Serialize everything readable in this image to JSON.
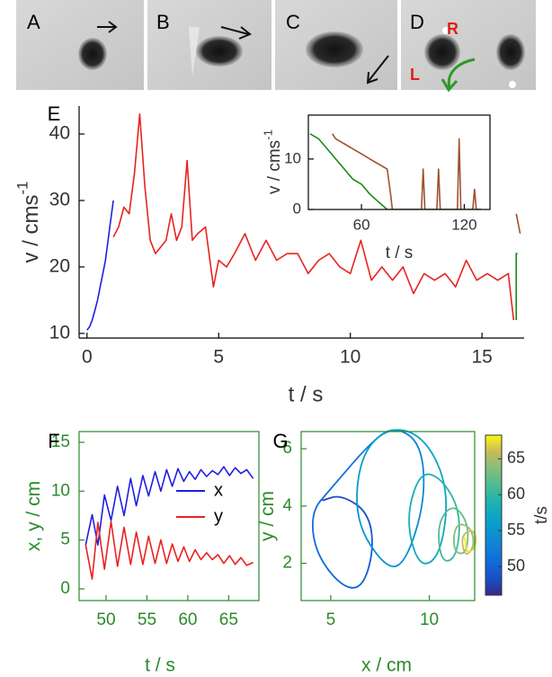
{
  "photos": [
    {
      "label": "A"
    },
    {
      "label": "B"
    },
    {
      "label": "C"
    },
    {
      "label": "D",
      "marks": [
        "R",
        "L"
      ]
    }
  ],
  "chart_data": [
    {
      "type": "line",
      "panel": "E",
      "xlabel": "t / s",
      "ylabel": "v / cms",
      "ylabel_sup": "-1",
      "xlim": [
        -0.3,
        16.6
      ],
      "ylim": [
        9.3,
        44.2
      ],
      "xticks": [
        0,
        5,
        10,
        15
      ],
      "yticks": [
        10,
        20,
        30,
        40
      ],
      "series": [
        {
          "color": "#1f1fe0",
          "x": [
            0,
            0.1,
            0.2,
            0.3,
            0.4,
            0.5,
            0.6,
            0.7,
            0.8,
            0.9,
            1.0
          ],
          "values": [
            10.5,
            11,
            12,
            13.5,
            15,
            17,
            19,
            21,
            24,
            27,
            30
          ]
        },
        {
          "color": "#e8231f",
          "x": [
            1.0,
            1.2,
            1.4,
            1.6,
            1.8,
            2.0,
            2.2,
            2.4,
            2.6,
            2.8,
            3.0,
            3.2,
            3.4,
            3.6,
            3.8,
            4.0,
            4.2,
            4.5,
            4.8,
            5.0,
            5.3,
            5.6,
            6.0,
            6.4,
            6.8,
            7.2,
            7.6,
            8.0,
            8.4,
            8.8,
            9.2,
            9.6,
            10.0,
            10.4,
            10.8,
            11.2,
            11.6,
            12.0,
            12.4,
            12.8,
            13.2,
            13.6,
            14.0,
            14.4,
            14.8,
            15.2,
            15.6,
            16.0,
            16.2
          ],
          "values": [
            24.5,
            26,
            29,
            28,
            34,
            43,
            32,
            24,
            22,
            23,
            24,
            28,
            24,
            26,
            36,
            24,
            25,
            26,
            17,
            21,
            20,
            22,
            25,
            21,
            24,
            21,
            22,
            22,
            19,
            21,
            22,
            20,
            19,
            24,
            18,
            20,
            18,
            20,
            16,
            19,
            18,
            19,
            17,
            21,
            18,
            19,
            18,
            19,
            12
          ]
        },
        {
          "color": "#1a8a1a",
          "x": [
            16.3,
            16.3,
            16.35
          ],
          "values": [
            12,
            22,
            22
          ]
        },
        {
          "color": "#a0522d",
          "x": [
            16.3,
            16.35,
            16.45
          ],
          "values": [
            28,
            27,
            25
          ]
        }
      ]
    },
    {
      "type": "line",
      "xlabel": "t / s",
      "ylabel": "v / cms",
      "ylabel_sup": "-1",
      "xlim": [
        29,
        135
      ],
      "ylim": [
        0,
        18.7
      ],
      "xticks": [
        60,
        120
      ],
      "yticks": [
        0,
        10
      ],
      "series": [
        {
          "color": "#1a8a1a",
          "x": [
            30,
            35,
            40,
            45,
            50,
            55,
            60,
            65,
            70,
            75,
            80,
            100,
            130
          ],
          "values": [
            15,
            14,
            12,
            10,
            8,
            6,
            5,
            3,
            1.5,
            0,
            0,
            0,
            0
          ]
        },
        {
          "color": "#a0522d",
          "x": [
            43,
            45,
            50,
            55,
            60,
            65,
            70,
            75,
            77,
            78,
            90,
            95,
            96,
            97,
            100,
            104,
            105,
            106,
            110,
            116,
            117,
            118,
            125,
            126,
            127,
            130
          ],
          "values": [
            15,
            14,
            13,
            12,
            11,
            10,
            9,
            8,
            3,
            0,
            0,
            0,
            8,
            0,
            0,
            0,
            8,
            0,
            0,
            0,
            14,
            0,
            0,
            4,
            0,
            0
          ]
        }
      ]
    },
    {
      "type": "line",
      "panel": "F",
      "xlabel": "t / s",
      "ylabel": "x, y / cm",
      "axis_color": "#2a8a2a",
      "xlim": [
        46.7,
        68.7
      ],
      "ylim": [
        -1.2,
        16.1
      ],
      "xticks": [
        50,
        55,
        60,
        65
      ],
      "yticks": [
        0,
        5,
        10,
        15
      ],
      "series": [
        {
          "name": "x",
          "color": "#1f1fe0",
          "x": [
            47.5,
            48.3,
            49,
            49.8,
            50.6,
            51.4,
            52.2,
            53,
            53.7,
            54.5,
            55.2,
            56,
            56.7,
            57.4,
            58.1,
            58.8,
            59.5,
            60.2,
            60.9,
            61.6,
            62.3,
            63,
            63.7,
            64.4,
            65.1,
            65.8,
            66.5,
            67.2,
            68
          ],
          "values": [
            4.5,
            7.6,
            4.5,
            9.6,
            7,
            10.5,
            7.5,
            11.3,
            8.5,
            11.6,
            9.5,
            12,
            10,
            12.2,
            10.5,
            12.3,
            11,
            12,
            11.2,
            12.2,
            11.5,
            12.1,
            11.7,
            12.5,
            11.6,
            12.4,
            11.8,
            12.2,
            11.3
          ]
        },
        {
          "name": "y",
          "color": "#e8231f",
          "x": [
            47.5,
            48.3,
            49,
            49.8,
            50.6,
            51.4,
            52.2,
            53,
            53.7,
            54.5,
            55.2,
            56,
            56.7,
            57.4,
            58.1,
            58.8,
            59.5,
            60.2,
            60.9,
            61.6,
            62.3,
            63,
            63.7,
            64.4,
            65.1,
            65.8,
            66.5,
            67.2,
            68
          ],
          "values": [
            4.5,
            1,
            6.8,
            2,
            6.9,
            2.3,
            6.3,
            2.5,
            5.8,
            2.5,
            5.4,
            2.6,
            5,
            2.6,
            4.6,
            2.8,
            4.3,
            2.8,
            4,
            3,
            3.7,
            3,
            3.5,
            2.6,
            3.4,
            2.5,
            3.2,
            2.4,
            2.7
          ]
        }
      ]
    },
    {
      "type": "trajectory",
      "panel": "G",
      "xlabel": "x / cm",
      "ylabel": "y / cm",
      "axis_color": "#2a8a2a",
      "xlim": [
        3.5,
        12.3
      ],
      "ylim": [
        0.7,
        6.6
      ],
      "xticks": [
        5,
        10
      ],
      "yticks": [
        2,
        4,
        6
      ],
      "x": [
        4.6,
        5.5,
        6.9,
        7.2,
        6.6,
        5.5,
        4.2,
        4.0,
        5.0,
        7.0,
        8.2,
        9.6,
        9.8,
        8.8,
        7.8,
        6.2,
        6.5,
        8.0,
        9.8,
        11,
        10.6,
        9.5,
        8.8,
        9.5,
        10.6,
        11.6,
        11.4,
        10.6,
        10.4,
        11.2,
        12.0,
        11.9,
        11.2,
        11.3,
        12.1,
        12.3,
        11.8,
        11.6,
        12.3,
        12.4,
        11.9,
        11.8
      ],
      "y": [
        4.2,
        4.4,
        3.8,
        2.5,
        1.1,
        1.2,
        2.4,
        3.8,
        4.6,
        6.2,
        6.8,
        6.2,
        4.2,
        2.0,
        1.8,
        3.5,
        5.8,
        6.8,
        6.4,
        4.6,
        2.3,
        1.8,
        3.5,
        5.2,
        5.0,
        3.8,
        2.2,
        2.0,
        3.4,
        4.1,
        3.4,
        2.3,
        2.4,
        3.4,
        3.3,
        2.6,
        2.2,
        3.0,
        3.2,
        2.6,
        2.3,
        2.9
      ],
      "t": [
        47.5,
        48,
        48.5,
        49,
        49.5,
        50,
        50.5,
        51,
        51.5,
        52,
        52.5,
        53,
        53.5,
        54,
        54.5,
        55,
        55.5,
        56,
        56.5,
        57,
        57.5,
        58,
        58.5,
        59,
        59.5,
        60,
        60.5,
        61,
        61.5,
        62,
        62.5,
        63,
        63.5,
        64,
        64.5,
        65,
        65.5,
        66,
        66.5,
        67,
        67.5,
        68
      ],
      "colormap": "parula",
      "clim": [
        46,
        68.3
      ],
      "colorbar_ticks": [
        50,
        55,
        60,
        65
      ],
      "colorbar_label": "t/s"
    }
  ]
}
